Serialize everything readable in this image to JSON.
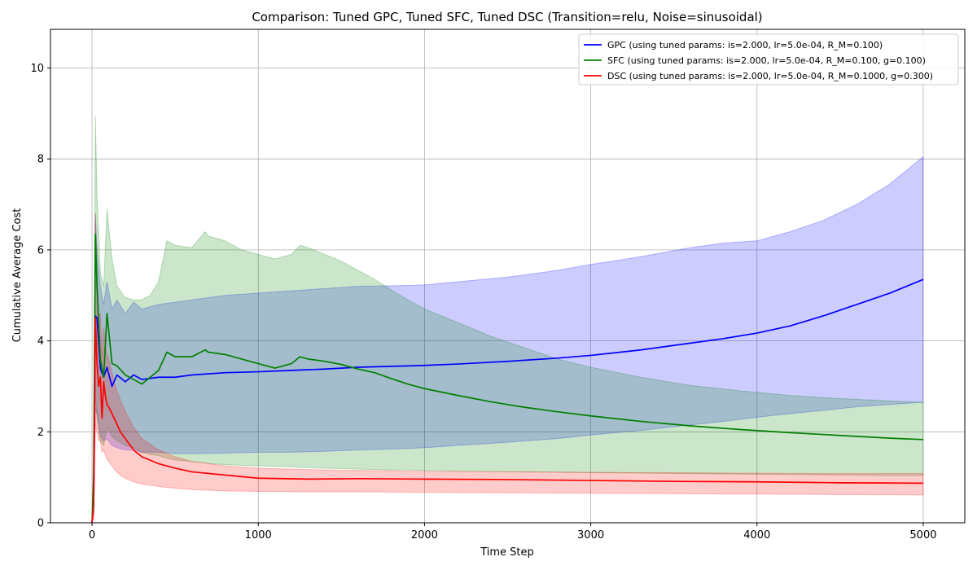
{
  "chart_data": {
    "type": "line",
    "title": "Comparison: Tuned GPC, Tuned SFC, Tuned DSC (Transition=relu, Noise=sinusoidal)",
    "xlabel": "Time Step",
    "ylabel": "Cumulative Average Cost",
    "xlim": [
      -250,
      5250
    ],
    "ylim": [
      0,
      10.85
    ],
    "xticks": [
      0,
      1000,
      2000,
      3000,
      4000,
      5000
    ],
    "yticks": [
      0,
      2,
      4,
      6,
      8,
      10
    ],
    "grid": true,
    "legend_position": "top-right",
    "series": [
      {
        "name": "GPC  (using tuned params: is=2.000, lr=5.0e-04, R_M=0.100)",
        "color": "#0000ff",
        "band_color": "#0000ff",
        "band_opacity": 0.2,
        "x": [
          0,
          10,
          20,
          30,
          50,
          70,
          90,
          120,
          150,
          200,
          250,
          300,
          400,
          500,
          600,
          800,
          1000,
          1200,
          1400,
          1600,
          1800,
          2000,
          2200,
          2500,
          2800,
          3000,
          3300,
          3600,
          3800,
          4000,
          4200,
          4400,
          4600,
          4800,
          5000
        ],
        "mean": [
          0,
          0.5,
          4.55,
          4.5,
          3.4,
          3.2,
          3.42,
          3.0,
          3.25,
          3.1,
          3.25,
          3.15,
          3.2,
          3.2,
          3.25,
          3.3,
          3.32,
          3.35,
          3.38,
          3.42,
          3.44,
          3.46,
          3.49,
          3.55,
          3.62,
          3.68,
          3.8,
          3.95,
          4.05,
          4.17,
          4.33,
          4.55,
          4.8,
          5.05,
          5.35
        ],
        "upper": [
          0,
          1.5,
          6.8,
          6.0,
          5.2,
          4.8,
          5.3,
          4.7,
          4.9,
          4.6,
          4.85,
          4.7,
          4.8,
          4.85,
          4.9,
          5.0,
          5.05,
          5.1,
          5.15,
          5.2,
          5.21,
          5.23,
          5.3,
          5.4,
          5.55,
          5.68,
          5.85,
          6.05,
          6.15,
          6.2,
          6.4,
          6.65,
          7.0,
          7.45,
          8.05
        ],
        "lower": [
          0,
          0.2,
          2.5,
          2.4,
          1.9,
          1.8,
          1.85,
          1.7,
          1.65,
          1.6,
          1.6,
          1.55,
          1.55,
          1.52,
          1.52,
          1.53,
          1.55,
          1.55,
          1.57,
          1.6,
          1.62,
          1.65,
          1.7,
          1.77,
          1.85,
          1.93,
          2.03,
          2.15,
          2.23,
          2.32,
          2.4,
          2.47,
          2.55,
          2.6,
          2.65
        ]
      },
      {
        "name": "SFC  (using tuned params: is=2.000, lr=5.0e-04, R_M=0.100, g=0.100)",
        "color": "#008000",
        "band_color": "#008000",
        "band_opacity": 0.2,
        "x": [
          0,
          10,
          20,
          30,
          50,
          70,
          90,
          120,
          150,
          200,
          250,
          300,
          350,
          400,
          450,
          500,
          600,
          680,
          700,
          800,
          900,
          1000,
          1100,
          1200,
          1250,
          1300,
          1400,
          1500,
          1600,
          1700,
          1800,
          1900,
          2000,
          2200,
          2400,
          2600,
          2800,
          3000,
          3300,
          3600,
          3900,
          4200,
          4500,
          4800,
          5000
        ],
        "mean": [
          0,
          1.0,
          6.35,
          5.2,
          3.6,
          3.2,
          4.6,
          3.5,
          3.45,
          3.25,
          3.15,
          3.05,
          3.2,
          3.35,
          3.75,
          3.65,
          3.65,
          3.8,
          3.75,
          3.7,
          3.6,
          3.5,
          3.4,
          3.5,
          3.65,
          3.6,
          3.55,
          3.48,
          3.38,
          3.3,
          3.17,
          3.05,
          2.95,
          2.8,
          2.66,
          2.54,
          2.44,
          2.35,
          2.23,
          2.13,
          2.05,
          1.98,
          1.92,
          1.86,
          1.83
        ],
        "upper": [
          0,
          2.0,
          8.95,
          7.2,
          5.5,
          5.2,
          6.9,
          5.8,
          5.2,
          4.95,
          4.9,
          4.9,
          5.0,
          5.3,
          6.2,
          6.1,
          6.05,
          6.4,
          6.3,
          6.2,
          6.0,
          5.9,
          5.8,
          5.9,
          6.1,
          6.05,
          5.9,
          5.75,
          5.55,
          5.35,
          5.12,
          4.9,
          4.7,
          4.4,
          4.1,
          3.85,
          3.6,
          3.42,
          3.2,
          3.02,
          2.9,
          2.8,
          2.73,
          2.68,
          2.65
        ],
        "lower": [
          0,
          0.3,
          2.8,
          2.3,
          1.8,
          1.7,
          2.1,
          1.9,
          1.8,
          1.7,
          1.65,
          1.55,
          1.5,
          1.48,
          1.42,
          1.38,
          1.35,
          1.32,
          1.3,
          1.28,
          1.26,
          1.25,
          1.24,
          1.23,
          1.22,
          1.21,
          1.2,
          1.19,
          1.18,
          1.17,
          1.16,
          1.16,
          1.15,
          1.14,
          1.13,
          1.12,
          1.11,
          1.1,
          1.09,
          1.08,
          1.07,
          1.06,
          1.05,
          1.04,
          1.04
        ]
      },
      {
        "name": "DSC  (using tuned params: is=2.000, lr=5.0e-04, R_M=0.1000, g=0.300)",
        "color": "#ff0000",
        "band_color": "#ff0000",
        "band_opacity": 0.2,
        "x": [
          0,
          10,
          20,
          30,
          40,
          50,
          60,
          70,
          80,
          90,
          100,
          120,
          140,
          170,
          200,
          250,
          300,
          400,
          500,
          600,
          800,
          1000,
          1300,
          1600,
          2000,
          2500,
          3000,
          3500,
          4000,
          4500,
          5000
        ],
        "mean": [
          0,
          0.4,
          4.5,
          3.5,
          3.0,
          3.2,
          2.3,
          3.1,
          2.8,
          2.6,
          2.55,
          2.4,
          2.25,
          2.0,
          1.85,
          1.6,
          1.45,
          1.3,
          1.2,
          1.12,
          1.05,
          0.98,
          0.96,
          0.97,
          0.96,
          0.95,
          0.93,
          0.91,
          0.9,
          0.88,
          0.87
        ],
        "upper": [
          0,
          1.0,
          6.8,
          5.4,
          4.6,
          4.6,
          3.6,
          4.3,
          3.9,
          3.7,
          3.6,
          3.3,
          3.0,
          2.7,
          2.45,
          2.1,
          1.85,
          1.6,
          1.45,
          1.35,
          1.25,
          1.2,
          1.17,
          1.15,
          1.13,
          1.12,
          1.11,
          1.1,
          1.09,
          1.08,
          1.08
        ],
        "lower": [
          0,
          0.1,
          2.2,
          2.0,
          1.8,
          1.8,
          1.55,
          1.6,
          1.5,
          1.4,
          1.35,
          1.25,
          1.15,
          1.05,
          0.98,
          0.9,
          0.85,
          0.8,
          0.76,
          0.73,
          0.7,
          0.69,
          0.68,
          0.68,
          0.67,
          0.66,
          0.65,
          0.64,
          0.63,
          0.62,
          0.61
        ]
      }
    ]
  }
}
